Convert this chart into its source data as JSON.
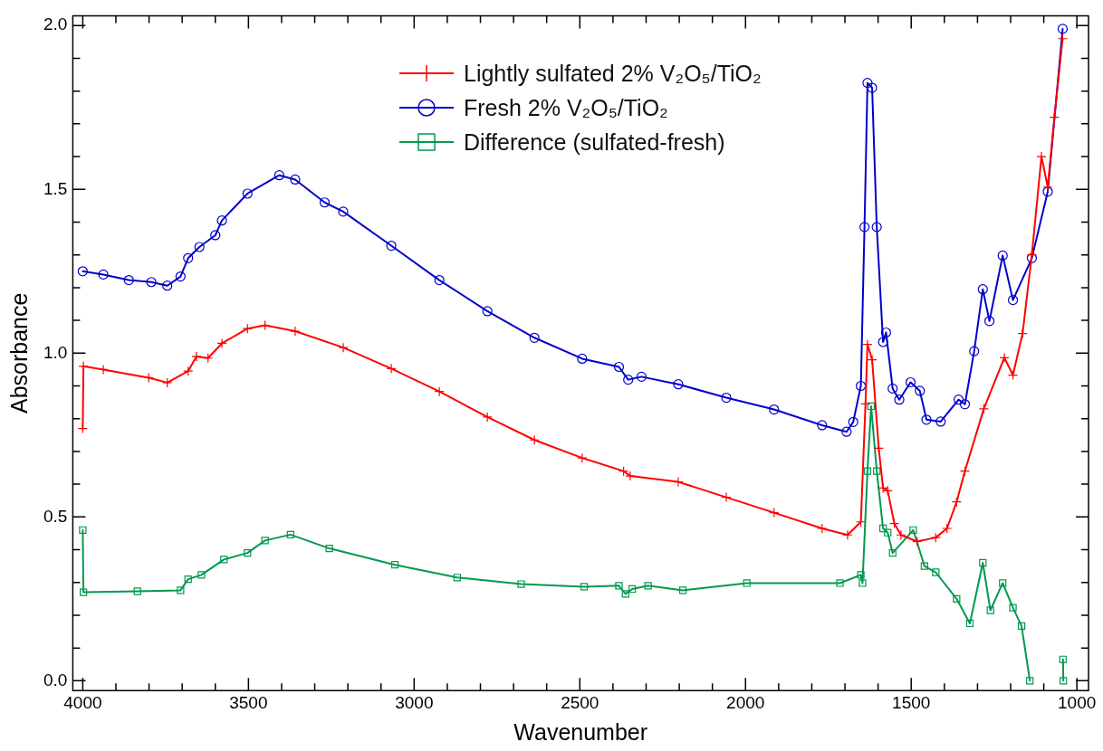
{
  "chart_data": {
    "type": "line",
    "xlabel": "Wavenumber",
    "ylabel": "Absorbance",
    "xlim": [
      4030,
      965
    ],
    "ylim": [
      -0.03,
      2.03
    ],
    "xticks": [
      4000,
      {
        "value": 3900,
        "label": null
      },
      {
        "value": 3800,
        "label": null
      },
      {
        "value": 3700,
        "label": null
      },
      {
        "value": 3600,
        "label": null
      },
      3500,
      {
        "value": 3400,
        "label": null
      },
      {
        "value": 3300,
        "label": null
      },
      {
        "value": 3200,
        "label": null
      },
      {
        "value": 3100,
        "label": null
      },
      3000,
      {
        "value": 2900,
        "label": null
      },
      {
        "value": 2800,
        "label": null
      },
      {
        "value": 2700,
        "label": null
      },
      {
        "value": 2600,
        "label": null
      },
      2500,
      {
        "value": 2400,
        "label": null
      },
      {
        "value": 2300,
        "label": null
      },
      {
        "value": 2200,
        "label": null
      },
      {
        "value": 2100,
        "label": null
      },
      2000,
      {
        "value": 1900,
        "label": null
      },
      {
        "value": 1800,
        "label": null
      },
      {
        "value": 1700,
        "label": null
      },
      {
        "value": 1600,
        "label": null
      },
      1500,
      {
        "value": 1400,
        "label": null
      },
      {
        "value": 1300,
        "label": null
      },
      {
        "value": 1200,
        "label": null
      },
      {
        "value": 1100,
        "label": null
      },
      1000
    ],
    "yticks": [
      {
        "value": 0,
        "label": "0.0"
      },
      {
        "value": 0.1,
        "label": null
      },
      {
        "value": 0.2,
        "label": null
      },
      {
        "value": 0.3,
        "label": null
      },
      {
        "value": 0.4,
        "label": null
      },
      {
        "value": 0.5,
        "label": "0.5"
      },
      {
        "value": 0.6,
        "label": null
      },
      {
        "value": 0.7,
        "label": null
      },
      {
        "value": 0.8,
        "label": null
      },
      {
        "value": 0.9,
        "label": null
      },
      {
        "value": 1,
        "label": "1.0"
      },
      {
        "value": 1.1,
        "label": null
      },
      {
        "value": 1.2,
        "label": null
      },
      {
        "value": 1.3,
        "label": null
      },
      {
        "value": 1.4,
        "label": null
      },
      {
        "value": 1.5,
        "label": "1.5"
      },
      {
        "value": 1.6,
        "label": null
      },
      {
        "value": 1.7,
        "label": null
      },
      {
        "value": 1.8,
        "label": null
      },
      {
        "value": 1.9,
        "label": null
      },
      {
        "value": 2,
        "label": "2.0"
      }
    ],
    "grid": false,
    "legend": "top",
    "line_style": "solid",
    "series": [
      {
        "name": "Lightly sulfated 2% V₂O₅/TiO₂",
        "color": "#ff0000",
        "marker": "cross",
        "x": [
          4000,
          3998,
          3938,
          3801,
          3745,
          3682,
          3657,
          3622,
          3580,
          3503,
          3450,
          3359,
          3214,
          3069,
          2924,
          2779,
          2637,
          2493,
          2368,
          2348,
          2203,
          2058,
          1914,
          1769,
          1692,
          1652,
          1638,
          1632,
          1618,
          1598,
          1585,
          1571,
          1551,
          1531,
          1482,
          1426,
          1392,
          1363,
          1338,
          1281,
          1219,
          1193,
          1164,
          1136,
          1107,
          1088,
          1068,
          1043
        ],
        "values": [
          0.77,
          0.96,
          0.95,
          0.925,
          0.91,
          0.945,
          0.99,
          0.985,
          1.03,
          1.075,
          1.085,
          1.067,
          1.017,
          0.953,
          0.883,
          0.805,
          0.735,
          0.68,
          0.64,
          0.625,
          0.607,
          0.56,
          0.513,
          0.465,
          0.445,
          0.485,
          0.845,
          1.027,
          0.98,
          0.71,
          0.588,
          0.58,
          0.48,
          0.445,
          0.425,
          0.437,
          0.465,
          0.546,
          0.64,
          0.83,
          0.986,
          0.933,
          1.06,
          1.3,
          1.6,
          1.507,
          1.72,
          1.96
        ]
      },
      {
        "name": "Fresh 2% V₂O₅/TiO₂",
        "color": "#0000cc",
        "marker": "circle",
        "x": [
          4000,
          3938,
          3861,
          3793,
          3745,
          3705,
          3682,
          3648,
          3600,
          3580,
          3503,
          3407,
          3359,
          3270,
          3214,
          3069,
          2924,
          2779,
          2637,
          2493,
          2382,
          2354,
          2314,
          2203,
          2058,
          1914,
          1769,
          1695,
          1675,
          1652,
          1641,
          1632,
          1618,
          1604,
          1585,
          1576,
          1556,
          1536,
          1502,
          1474,
          1454,
          1411,
          1357,
          1338,
          1310,
          1284,
          1264,
          1224,
          1193,
          1136,
          1088,
          1043
        ],
        "values": [
          1.25,
          1.24,
          1.223,
          1.217,
          1.206,
          1.234,
          1.29,
          1.324,
          1.36,
          1.405,
          1.487,
          1.543,
          1.53,
          1.46,
          1.432,
          1.328,
          1.223,
          1.128,
          1.047,
          0.983,
          0.958,
          0.919,
          0.928,
          0.905,
          0.864,
          0.828,
          0.78,
          0.76,
          0.79,
          0.9,
          1.385,
          1.825,
          1.81,
          1.385,
          1.034,
          1.063,
          0.892,
          0.858,
          0.911,
          0.885,
          0.797,
          0.791,
          0.858,
          0.844,
          1.006,
          1.195,
          1.098,
          1.298,
          1.162,
          1.29,
          1.493,
          1.99
        ]
      },
      {
        "name": "Difference (sulfated-fresh)",
        "color": "#009950",
        "marker": "square",
        "x": [
          4000,
          3998,
          3835,
          3705,
          3682,
          3642,
          3574,
          3503,
          3450,
          3373,
          3256,
          3058,
          2870,
          2677,
          2487,
          2382,
          2362,
          2342,
          2294,
          2189,
          1996,
          1715,
          1652,
          1647,
          1632,
          1621,
          1604,
          1585,
          1571,
          1556,
          1494,
          1460,
          1426,
          1363,
          1323,
          1284,
          1261,
          1224,
          1193,
          1167,
          1142,
          1100,
          1042,
          1041
        ],
        "values": [
          0.46,
          0.27,
          0.273,
          0.276,
          0.31,
          0.323,
          0.37,
          0.39,
          0.428,
          0.446,
          0.404,
          0.354,
          0.315,
          0.295,
          0.287,
          0.29,
          0.265,
          0.28,
          0.29,
          0.276,
          0.298,
          0.298,
          0.323,
          0.298,
          0.64,
          0.838,
          0.64,
          0.465,
          0.452,
          0.39,
          0.46,
          0.35,
          0.331,
          0.25,
          0.175,
          0.36,
          0.215,
          0.298,
          0.223,
          0.167,
          0.0,
          null,
          0.065,
          0.0
        ]
      }
    ]
  }
}
